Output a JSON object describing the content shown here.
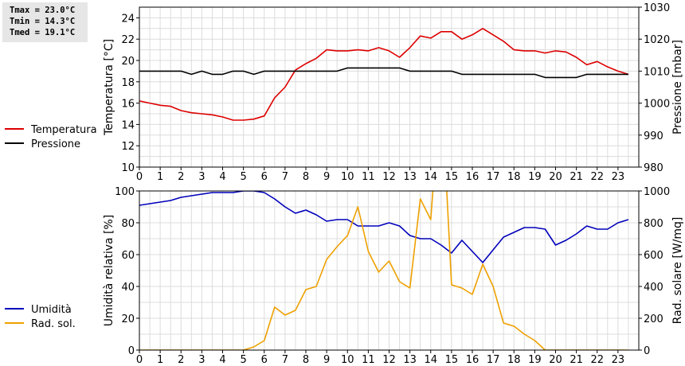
{
  "stats": {
    "tmax": "Tmax = 23.0°C",
    "tmin": "Tmin = 14.3°C",
    "tmed": "Tmed = 19.1°C"
  },
  "chart_data": [
    {
      "type": "line",
      "title": "",
      "xlabel": "",
      "xlim": [
        0,
        24
      ],
      "x_ticks": [
        0,
        1,
        2,
        3,
        4,
        5,
        6,
        7,
        8,
        9,
        10,
        11,
        12,
        13,
        14,
        15,
        16,
        17,
        18,
        19,
        20,
        21,
        22,
        23
      ],
      "ylabel_left": "Temperatura [°C]",
      "ylim_left": [
        10,
        25
      ],
      "yticks_left": [
        10,
        12,
        14,
        16,
        18,
        20,
        22,
        24
      ],
      "ylabel_right": "Pressione [mbar]",
      "ylim_right": [
        980,
        1030
      ],
      "yticks_right": [
        980,
        990,
        1000,
        1010,
        1020,
        1030
      ],
      "grid": true,
      "legend": "left",
      "series": [
        {
          "name": "Temperatura",
          "axis": "left",
          "color": "#dd0000",
          "x": [
            0,
            0.5,
            1,
            1.5,
            2,
            2.5,
            3,
            3.5,
            4,
            4.5,
            5,
            5.5,
            6,
            6.5,
            7,
            7.5,
            8,
            8.5,
            9,
            9.5,
            10,
            10.5,
            11,
            11.5,
            12,
            12.5,
            13,
            13.5,
            14,
            14.5,
            15,
            15.5,
            16,
            16.5,
            17,
            17.5,
            18,
            18.5,
            19,
            19.5,
            20,
            20.5,
            21,
            21.5,
            22,
            22.5,
            23,
            23.5
          ],
          "values": [
            16.2,
            16.0,
            15.8,
            15.7,
            15.3,
            15.1,
            15.0,
            14.9,
            14.7,
            14.4,
            14.4,
            14.5,
            14.8,
            16.5,
            17.5,
            19.1,
            19.7,
            20.2,
            21.0,
            20.9,
            20.9,
            21.0,
            20.9,
            21.2,
            20.9,
            20.3,
            21.2,
            22.3,
            22.1,
            22.7,
            22.7,
            22.0,
            22.4,
            23.0,
            22.4,
            21.8,
            21.0,
            20.9,
            20.9,
            20.7,
            20.9,
            20.8,
            20.3,
            19.6,
            19.9,
            19.4,
            19.0,
            18.7
          ]
        },
        {
          "name": "Pressione",
          "axis": "right",
          "color": "#000000",
          "x": [
            0,
            2,
            2.5,
            3,
            3.5,
            4,
            4.5,
            5,
            5.5,
            6,
            8.5,
            9,
            9.5,
            10,
            12.5,
            13,
            13.5,
            15,
            15.5,
            19,
            19.5,
            21,
            21.5,
            23.5
          ],
          "values": [
            1010,
            1010,
            1009,
            1010,
            1009,
            1009,
            1010,
            1010,
            1009,
            1010,
            1010,
            1010,
            1010,
            1011,
            1011,
            1010,
            1010,
            1010,
            1009,
            1009,
            1008,
            1008,
            1009,
            1009
          ]
        }
      ]
    },
    {
      "type": "line",
      "title": "",
      "xlabel": "",
      "xlim": [
        0,
        24
      ],
      "x_ticks": [
        0,
        1,
        2,
        3,
        4,
        5,
        6,
        7,
        8,
        9,
        10,
        11,
        12,
        13,
        14,
        15,
        16,
        17,
        18,
        19,
        20,
        21,
        22,
        23
      ],
      "ylabel_left": "Umidità relativa [%]",
      "ylim_left": [
        0,
        100
      ],
      "yticks_left": [
        0,
        20,
        40,
        60,
        80,
        100
      ],
      "ylabel_right": "Rad. solare [W/mq]",
      "ylim_right": [
        0,
        1000
      ],
      "yticks_right": [
        0,
        200,
        400,
        600,
        800,
        1000
      ],
      "grid": true,
      "legend": "left",
      "series": [
        {
          "name": "Umidità",
          "axis": "left",
          "color": "#0000bb",
          "x": [
            0,
            0.5,
            1,
            1.5,
            2,
            2.5,
            3,
            3.5,
            4,
            4.5,
            5,
            5.5,
            6,
            6.5,
            7,
            7.5,
            8,
            8.5,
            9,
            9.5,
            10,
            10.5,
            11,
            11.5,
            12,
            12.5,
            13,
            13.5,
            14,
            14.5,
            15,
            15.5,
            16,
            16.5,
            17,
            17.5,
            18,
            18.5,
            19,
            19.5,
            20,
            20.5,
            21,
            21.5,
            22,
            22.5,
            23,
            23.5
          ],
          "values": [
            91,
            92,
            93,
            94,
            96,
            97,
            98,
            99,
            99,
            99,
            100,
            100,
            99,
            95,
            90,
            86,
            88,
            85,
            81,
            82,
            82,
            78,
            78,
            78,
            80,
            78,
            72,
            70,
            70,
            66,
            61,
            69,
            62,
            55,
            63,
            71,
            74,
            77,
            77,
            76,
            66,
            69,
            73,
            78,
            76,
            76,
            80,
            82
          ]
        },
        {
          "name": "Rad. sol.",
          "axis": "right",
          "color": "#eea000",
          "x": [
            0,
            0.5,
            1,
            1.5,
            2,
            2.5,
            3,
            3.5,
            4,
            4.5,
            5,
            5.5,
            6,
            6.5,
            7,
            7.5,
            8,
            8.5,
            9,
            9.5,
            10,
            10.5,
            11,
            11.5,
            12,
            12.5,
            13,
            13.5,
            14,
            14.5,
            15,
            15.5,
            16,
            16.5,
            17,
            17.5,
            18,
            18.5,
            19,
            19.5,
            20,
            20.5,
            21,
            21.5,
            22,
            22.5,
            23,
            23.5
          ],
          "values": [
            0,
            0,
            0,
            0,
            0,
            0,
            0,
            0,
            0,
            0,
            0,
            20,
            60,
            270,
            220,
            250,
            380,
            400,
            570,
            650,
            720,
            900,
            620,
            490,
            560,
            430,
            390,
            950,
            820,
            1700,
            410,
            390,
            350,
            540,
            400,
            170,
            150,
            100,
            60,
            0,
            0,
            0,
            0,
            0,
            0,
            0,
            0,
            0
          ]
        }
      ]
    }
  ]
}
